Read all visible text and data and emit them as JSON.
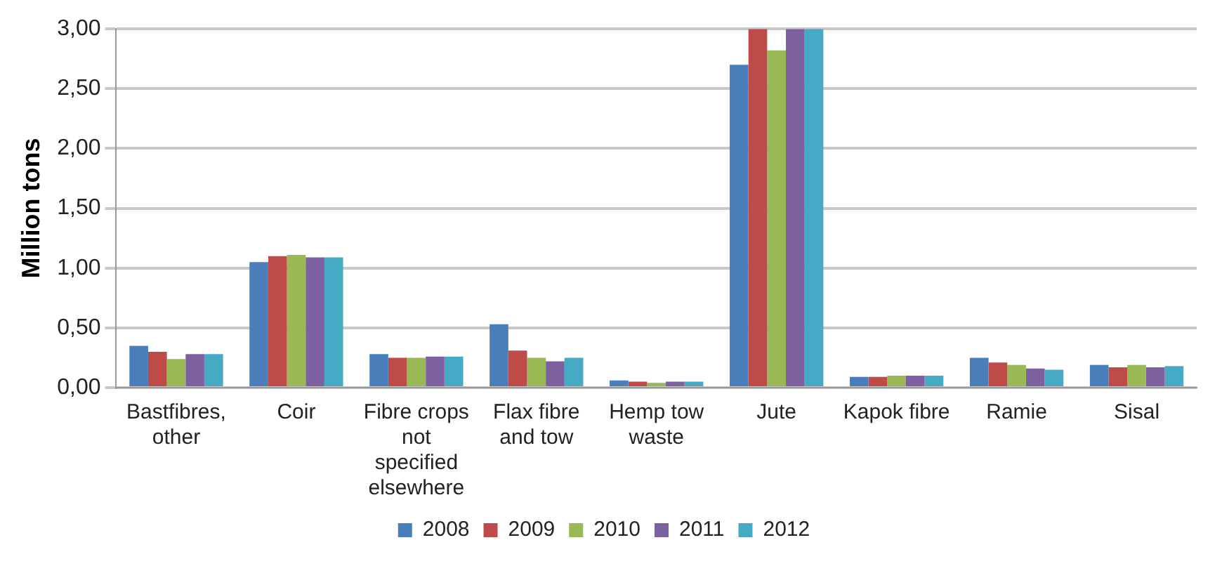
{
  "chart_data": {
    "type": "bar",
    "ylabel": "Million tons",
    "categories": [
      "Bastfibres, other",
      "Coir",
      "Fibre crops not specified elsewhere",
      "Flax fibre and tow",
      "Hemp tow waste",
      "Jute",
      "Kapok fibre",
      "Ramie",
      "Sisal"
    ],
    "series": [
      {
        "name": "2008",
        "color": "#4a7ebb",
        "values": [
          0.35,
          1.05,
          0.28,
          0.53,
          0.06,
          2.7,
          0.09,
          0.25,
          0.19
        ]
      },
      {
        "name": "2009",
        "color": "#be4b48",
        "values": [
          0.3,
          1.1,
          0.25,
          0.31,
          0.05,
          3.0,
          0.09,
          0.21,
          0.17
        ]
      },
      {
        "name": "2010",
        "color": "#98b954",
        "values": [
          0.24,
          1.11,
          0.25,
          0.25,
          0.04,
          2.82,
          0.1,
          0.19,
          0.19
        ]
      },
      {
        "name": "2011",
        "color": "#7d60a0",
        "values": [
          0.28,
          1.09,
          0.26,
          0.22,
          0.05,
          3.0,
          0.1,
          0.16,
          0.17
        ]
      },
      {
        "name": "2012",
        "color": "#46aac5",
        "values": [
          0.28,
          1.09,
          0.26,
          0.25,
          0.05,
          3.0,
          0.1,
          0.15,
          0.18
        ]
      }
    ],
    "ylim": [
      0,
      3
    ],
    "yticks": [
      {
        "value": 0,
        "label": "0,00"
      },
      {
        "value": 0.5,
        "label": "0,50"
      },
      {
        "value": 1,
        "label": "1,00"
      },
      {
        "value": 1.5,
        "label": "1,50"
      },
      {
        "value": 2,
        "label": "2,00"
      },
      {
        "value": 2.5,
        "label": "2,50"
      },
      {
        "value": 3,
        "label": "3,00"
      }
    ],
    "grid": "y",
    "legend": "bottom"
  }
}
